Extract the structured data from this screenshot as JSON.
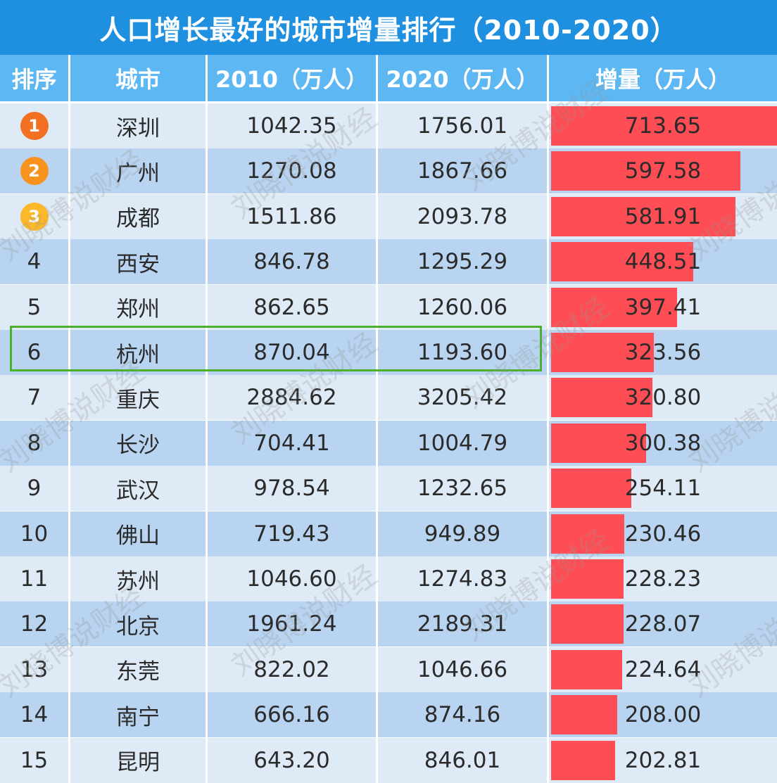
{
  "title": "人口增长最好的城市增量排行（2010-2020）",
  "watermark": "刘晓博说财经",
  "colors": {
    "title_bg": "#1f8fe0",
    "header_bg": "#5db7f3",
    "row_even": "#dfeaf7",
    "row_odd": "#b9d4f0",
    "bar": "#ff4d55",
    "highlight": "#4caf2e",
    "medal_1": "#f36f21",
    "medal_2": "#f7931e",
    "medal_3": "#fbb829"
  },
  "chart_data": {
    "type": "table",
    "columns": [
      "排序",
      "城市",
      "2010（万人）",
      "2020（万人）",
      "增量（万人）"
    ],
    "highlighted_city": "杭州",
    "rows": [
      {
        "rank": "1",
        "city": "深圳",
        "y2010": "1042.35",
        "y2020": "1756.01",
        "increase": "713.65",
        "inc": 713.65
      },
      {
        "rank": "2",
        "city": "广州",
        "y2010": "1270.08",
        "y2020": "1867.66",
        "increase": "597.58",
        "inc": 597.58
      },
      {
        "rank": "3",
        "city": "成都",
        "y2010": "1511.86",
        "y2020": "2093.78",
        "increase": "581.91",
        "inc": 581.91
      },
      {
        "rank": "4",
        "city": "西安",
        "y2010": "846.78",
        "y2020": "1295.29",
        "increase": "448.51",
        "inc": 448.51
      },
      {
        "rank": "5",
        "city": "郑州",
        "y2010": "862.65",
        "y2020": "1260.06",
        "increase": "397.41",
        "inc": 397.41
      },
      {
        "rank": "6",
        "city": "杭州",
        "y2010": "870.04",
        "y2020": "1193.60",
        "increase": "323.56",
        "inc": 323.56
      },
      {
        "rank": "7",
        "city": "重庆",
        "y2010": "2884.62",
        "y2020": "3205.42",
        "increase": "320.80",
        "inc": 320.8
      },
      {
        "rank": "8",
        "city": "长沙",
        "y2010": "704.41",
        "y2020": "1004.79",
        "increase": "300.38",
        "inc": 300.38
      },
      {
        "rank": "9",
        "city": "武汉",
        "y2010": "978.54",
        "y2020": "1232.65",
        "increase": "254.11",
        "inc": 254.11
      },
      {
        "rank": "10",
        "city": "佛山",
        "y2010": "719.43",
        "y2020": "949.89",
        "increase": "230.46",
        "inc": 230.46
      },
      {
        "rank": "11",
        "city": "苏州",
        "y2010": "1046.60",
        "y2020": "1274.83",
        "increase": "228.23",
        "inc": 228.23
      },
      {
        "rank": "12",
        "city": "北京",
        "y2010": "1961.24",
        "y2020": "2189.31",
        "increase": "228.07",
        "inc": 228.07
      },
      {
        "rank": "13",
        "city": "东莞",
        "y2010": "822.02",
        "y2020": "1046.66",
        "increase": "224.64",
        "inc": 224.64
      },
      {
        "rank": "14",
        "city": "南宁",
        "y2010": "666.16",
        "y2020": "874.16",
        "increase": "208.00",
        "inc": 208.0
      },
      {
        "rank": "15",
        "city": "昆明",
        "y2010": "643.20",
        "y2020": "846.01",
        "increase": "202.81",
        "inc": 202.81
      }
    ]
  }
}
